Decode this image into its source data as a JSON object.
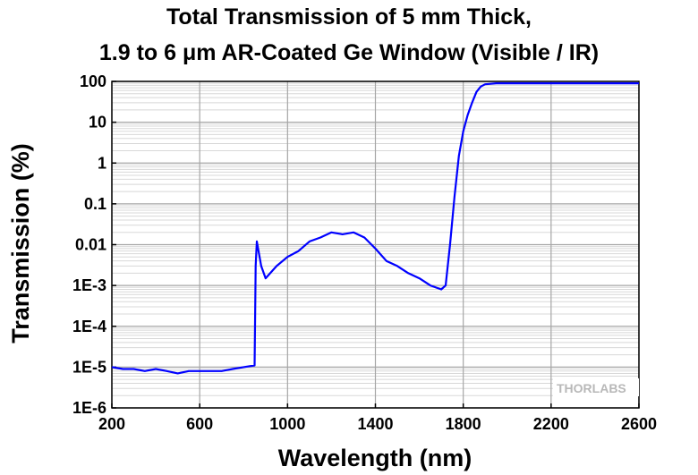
{
  "chart_data": {
    "type": "line",
    "title_line1": "Total Transmission of 5 mm Thick,",
    "title_line2": "1.9 to 6 μm AR-Coated Ge Window (Visible / IR)",
    "xlabel": "Wavelength (nm)",
    "ylabel": "Transmission (%)",
    "xlim": [
      200,
      2600
    ],
    "ylim": [
      1e-06,
      100
    ],
    "y_scale": "log",
    "grid": true,
    "x_ticks": [
      "200",
      "600",
      "1000",
      "1400",
      "1800",
      "2200",
      "2600"
    ],
    "y_ticks": [
      "1E-6",
      "1E-5",
      "1E-4",
      "1E-3",
      "0.01",
      "0.1",
      "1",
      "10",
      "100"
    ],
    "series": [
      {
        "color": "#0000ff",
        "x": [
          200,
          250,
          300,
          350,
          400,
          450,
          500,
          550,
          600,
          650,
          700,
          750,
          800,
          850,
          855,
          860,
          880,
          900,
          950,
          1000,
          1050,
          1100,
          1150,
          1200,
          1250,
          1300,
          1350,
          1400,
          1450,
          1500,
          1550,
          1600,
          1650,
          1700,
          1720,
          1740,
          1760,
          1780,
          1800,
          1820,
          1840,
          1860,
          1880,
          1900,
          1950,
          2000,
          2200,
          2400,
          2600
        ],
        "y": [
          1e-05,
          9e-06,
          9e-06,
          8e-06,
          9e-06,
          8e-06,
          7e-06,
          8e-06,
          8e-06,
          8e-06,
          8e-06,
          9e-06,
          1e-05,
          1.1e-05,
          0.003,
          0.012,
          0.003,
          0.0015,
          0.003,
          0.005,
          0.007,
          0.012,
          0.015,
          0.02,
          0.018,
          0.02,
          0.015,
          0.008,
          0.004,
          0.003,
          0.002,
          0.0015,
          0.001,
          0.0008,
          0.001,
          0.01,
          0.15,
          1.5,
          6,
          15,
          30,
          55,
          75,
          85,
          90,
          90,
          90,
          90,
          90
        ]
      }
    ]
  },
  "logo": {
    "text": "THORLABS"
  }
}
